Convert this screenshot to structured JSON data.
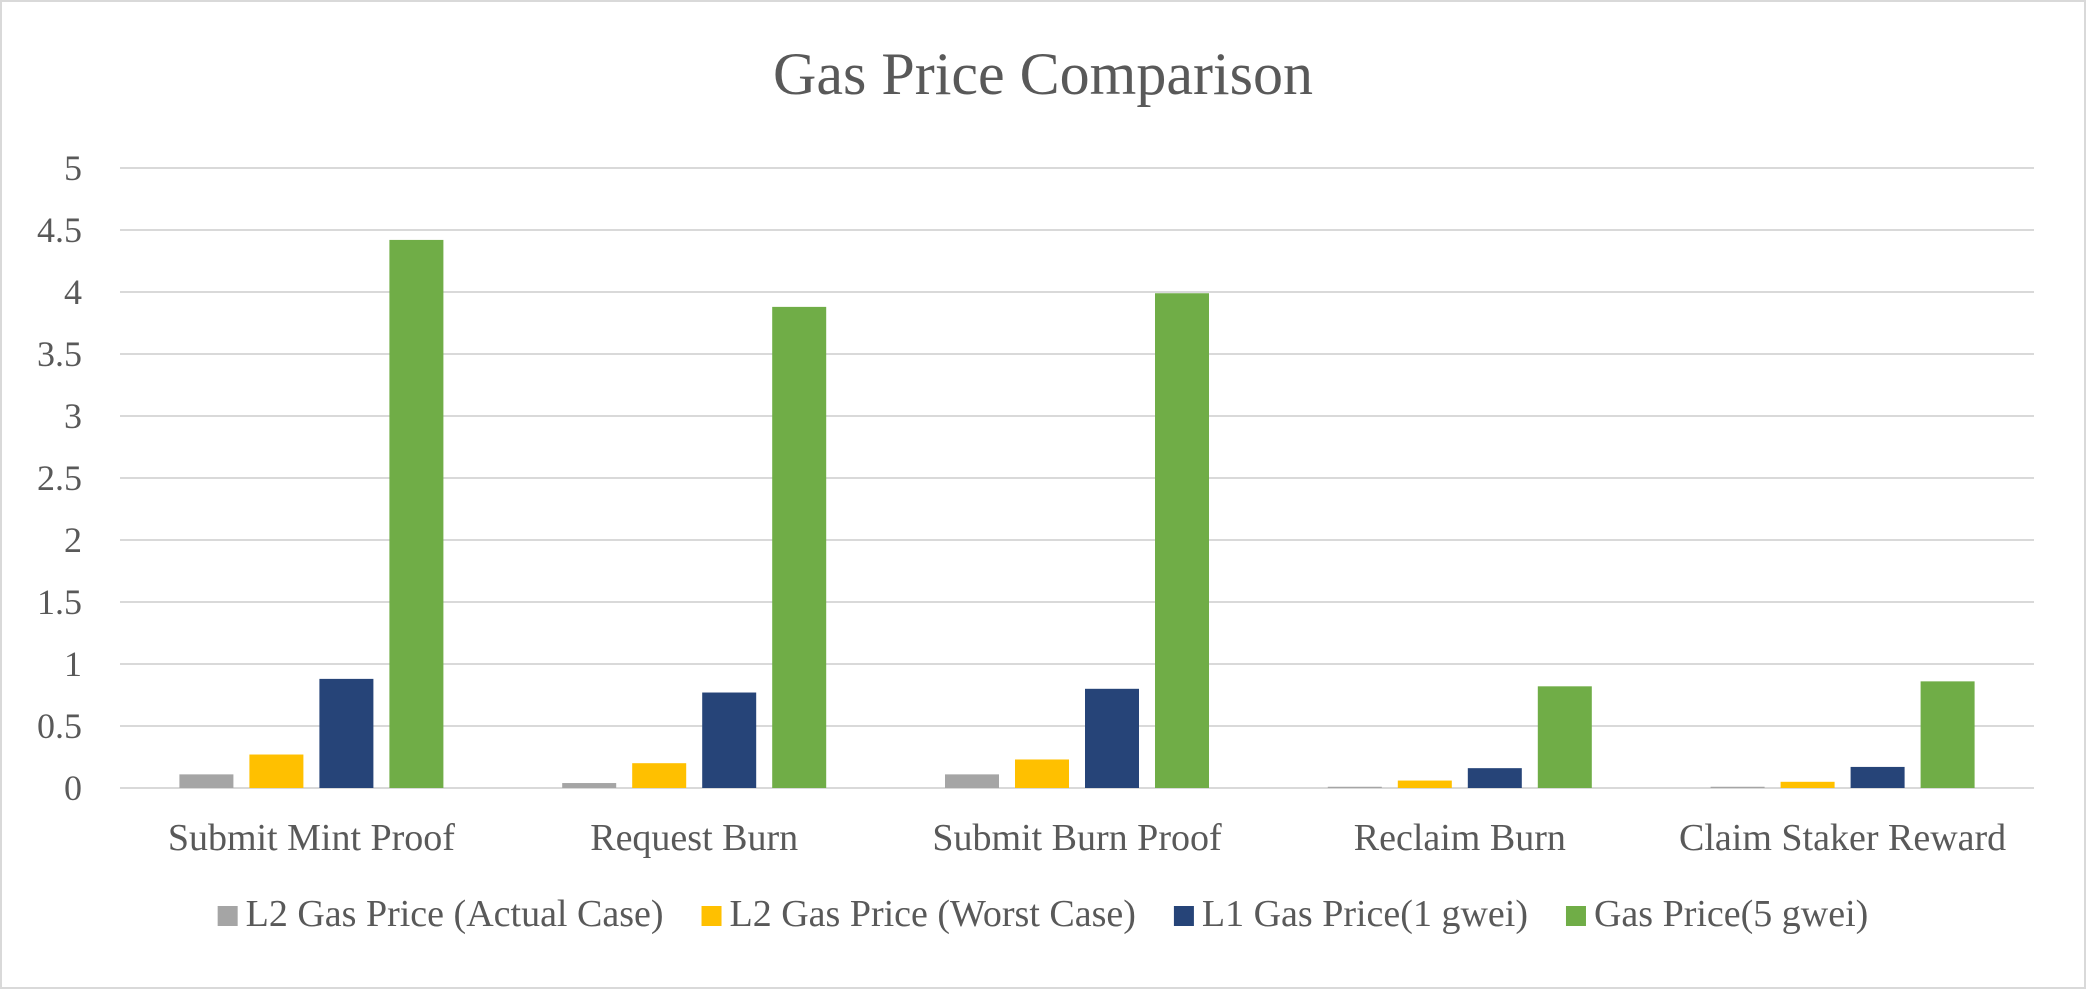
{
  "chart_data": {
    "type": "bar",
    "title": "Gas Price Comparison",
    "xlabel": "",
    "ylabel": "",
    "ylim": [
      0,
      5
    ],
    "yticks": [
      "0",
      "0.5",
      "1",
      "1.5",
      "2",
      "2.5",
      "3",
      "3.5",
      "4",
      "4.5",
      "5"
    ],
    "grid": true,
    "legend_position": "bottom",
    "categories": [
      "Submit Mint Proof",
      "Request Burn",
      "Submit Burn Proof",
      "Reclaim Burn",
      "Claim Staker Reward"
    ],
    "series": [
      {
        "name": "L2 Gas Price (Actual Case)",
        "color": "#a5a5a5",
        "values": [
          0.11,
          0.04,
          0.11,
          0.01,
          0.01
        ]
      },
      {
        "name": "L2 Gas Price (Worst Case)",
        "color": "#ffc000",
        "values": [
          0.27,
          0.2,
          0.23,
          0.06,
          0.05
        ]
      },
      {
        "name": "L1 Gas Price(1 gwei)",
        "color": "#264478",
        "values": [
          0.88,
          0.77,
          0.8,
          0.16,
          0.17
        ]
      },
      {
        "name": "Gas Price(5 gwei)",
        "color": "#70ad47",
        "values": [
          4.42,
          3.88,
          3.99,
          0.82,
          0.86
        ]
      }
    ]
  }
}
